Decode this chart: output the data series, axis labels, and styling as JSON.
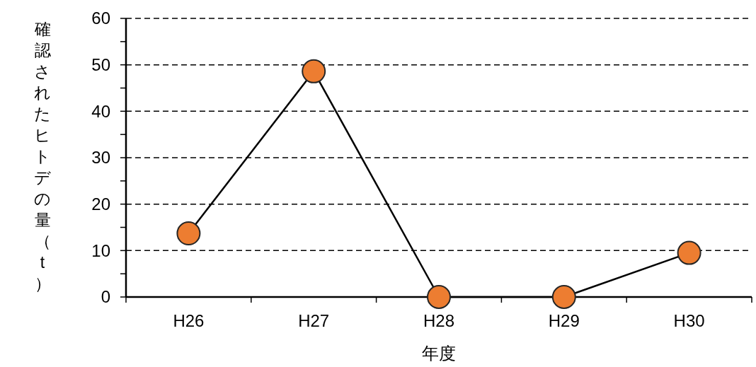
{
  "chart_data": {
    "type": "line",
    "xlabel": "年度",
    "ylabel": "確認されたヒトデの量（t）",
    "categories": [
      "H26",
      "H27",
      "H28",
      "H29",
      "H30"
    ],
    "series": [
      {
        "color": "#000000",
        "colors": [
          "#ed7d31",
          "#ed7d31",
          "#ed7d31",
          "#ed7d31",
          "#ed7d31"
        ],
        "values": [
          13.7,
          48.6,
          0,
          0,
          9.5
        ]
      }
    ],
    "ylim": [
      0,
      60
    ],
    "yticks": [
      0,
      {
        "value": 5,
        "label": null
      },
      10,
      {
        "value": 15,
        "label": null
      },
      20,
      {
        "value": 25,
        "label": null
      },
      30,
      {
        "value": 35,
        "label": null
      },
      40,
      {
        "value": 45,
        "label": null
      },
      50,
      {
        "value": 55,
        "label": null
      },
      60
    ],
    "grid": "y",
    "marker": "circle",
    "line_style": "solid"
  }
}
